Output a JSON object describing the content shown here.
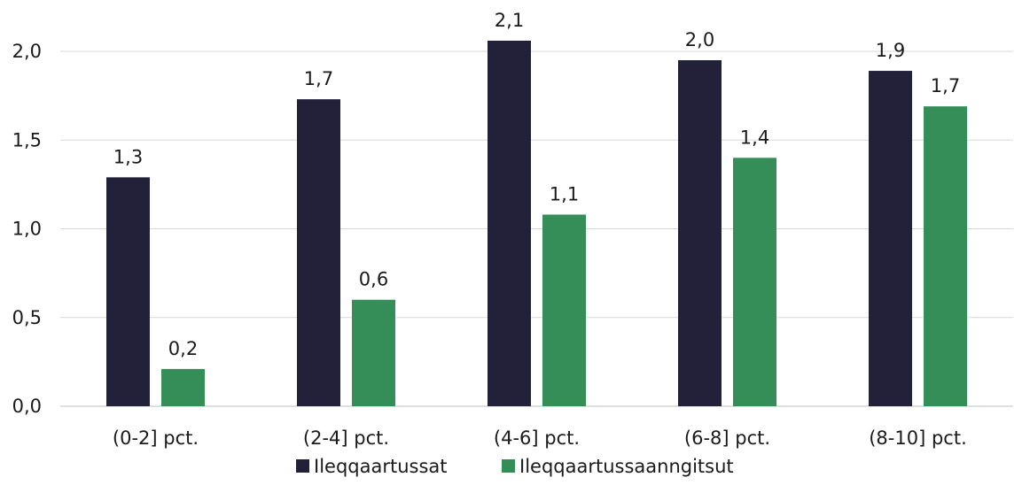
{
  "chart_data": {
    "type": "bar",
    "title": "",
    "xlabel": "",
    "ylabel": "",
    "categories": [
      "(0-2] pct.",
      "(2-4] pct.",
      "(4-6] pct.",
      "(6-8] pct.",
      "(8-10] pct."
    ],
    "series": [
      {
        "name": "Ileqqaartussat",
        "values": [
          1.29,
          1.73,
          2.06,
          1.95,
          1.89
        ],
        "labels": [
          "1,3",
          "1,7",
          "2,1",
          "2,0",
          "1,9"
        ],
        "color": "#23213a"
      },
      {
        "name": "Ileqqaartussaanngitsut",
        "values": [
          0.21,
          0.6,
          1.08,
          1.4,
          1.69
        ],
        "labels": [
          "0,2",
          "0,6",
          "1,1",
          "1,4",
          "1,7"
        ],
        "color": "#358e58"
      }
    ],
    "ylim": [
      0,
      2.0
    ],
    "yticks": [
      0,
      0.5,
      1.0,
      1.5,
      2.0
    ],
    "ytick_labels": [
      "0,0",
      "0,5",
      "1,0",
      "1,5",
      "2,0"
    ],
    "grid": true,
    "legend_position": "bottom"
  }
}
